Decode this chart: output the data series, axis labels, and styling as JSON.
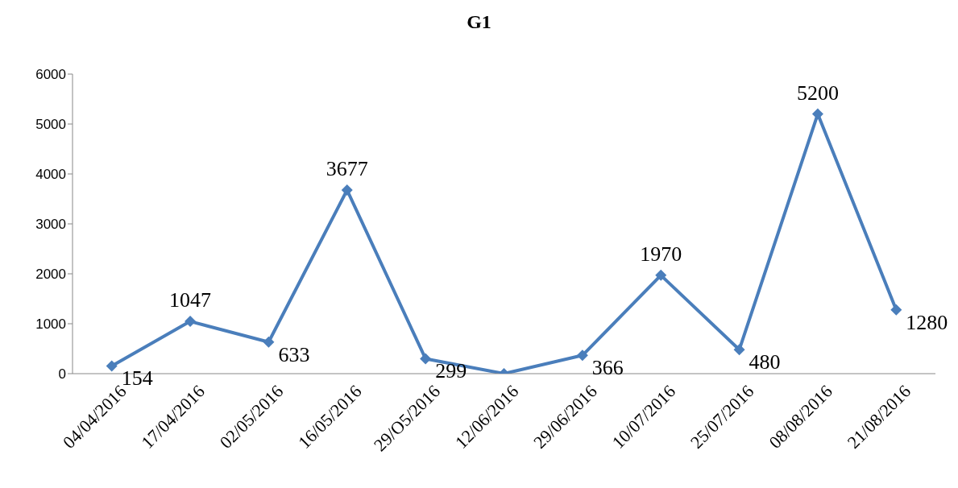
{
  "chart_data": {
    "type": "line",
    "title": "G1",
    "categories": [
      "04/04/2016",
      "17/04/2016",
      "02/05/2016",
      "16/05/2016",
      "29/O5/2016",
      "12/06/2016",
      "29/06/2016",
      "10/07/2016",
      "25/07/2016",
      "08/08/2016",
      "21/08/2016"
    ],
    "series": [
      {
        "color": "#4a7ebb",
        "values": [
          154,
          1047,
          633,
          3677,
          299,
          0,
          366,
          1970,
          480,
          5200,
          1280
        ],
        "value_labels": [
          "154",
          "1047",
          "633",
          "3677",
          "299",
          null,
          "366",
          "1970",
          "480",
          "5200",
          "1280"
        ]
      }
    ],
    "ylim": [
      0,
      6000
    ],
    "yticks": [
      0,
      1000,
      2000,
      3000,
      4000,
      5000,
      6000
    ],
    "marker": "diamond",
    "line_style": "solid"
  }
}
